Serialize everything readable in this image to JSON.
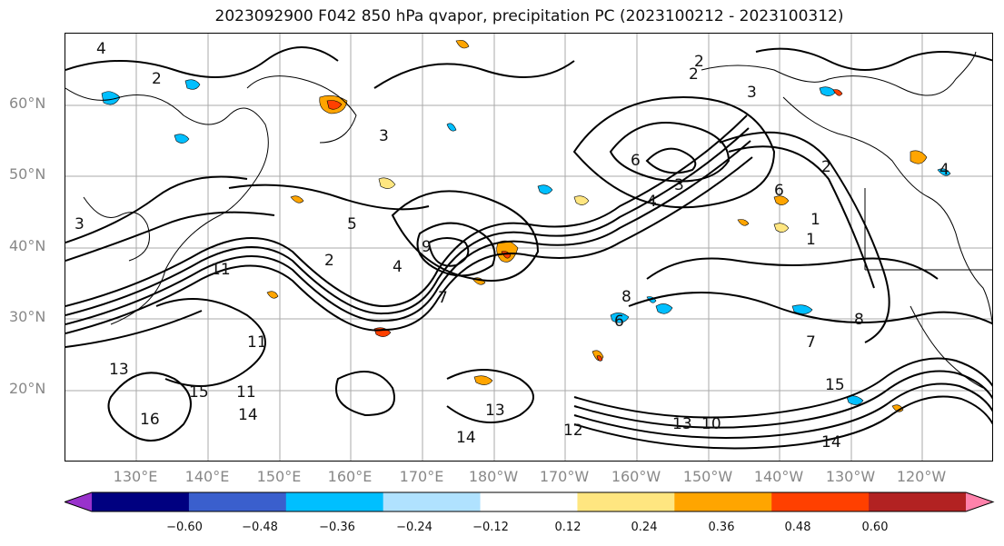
{
  "title": "2023092900 F042 850 hPa qvapor, precipitation PC (2023100212 - 2023100312)",
  "lat_labels": [
    "60°N",
    "50°N",
    "40°N",
    "30°N",
    "20°N"
  ],
  "lon_labels": [
    "130°E",
    "140°E",
    "150°E",
    "160°E",
    "170°E",
    "180°W",
    "170°W",
    "160°W",
    "150°W",
    "140°W",
    "130°W",
    "120°W"
  ],
  "contour_labels": [
    "4",
    "2",
    "2",
    "2",
    "3",
    "3",
    "6",
    "4",
    "3",
    "6",
    "2",
    "4",
    "1",
    "1",
    "3",
    "5",
    "9",
    "2",
    "4",
    "7",
    "11",
    "8",
    "8",
    "6",
    "7",
    "11",
    "13",
    "15",
    "16",
    "11",
    "14",
    "13",
    "14",
    "12",
    "15",
    "13",
    "14",
    "10"
  ],
  "colorbar": {
    "ticks": [
      "−0.60",
      "−0.48",
      "−0.36",
      "−0.24",
      "−0.12",
      "0.12",
      "0.24",
      "0.36",
      "0.48",
      "0.60"
    ],
    "bins": [
      {
        "color": "#9932cc"
      },
      {
        "color": "#000080"
      },
      {
        "color": "#3a5fcd"
      },
      {
        "color": "#00bfff"
      },
      {
        "color": "#b0e2ff"
      },
      {
        "color": "#ffffff"
      },
      {
        "color": "#ffe680"
      },
      {
        "color": "#ffa500"
      },
      {
        "color": "#ff4000"
      },
      {
        "color": "#b22222"
      },
      {
        "color": "#ff82ab"
      }
    ]
  },
  "map": {
    "lat_range": [
      "10°N",
      "70°N"
    ],
    "lon_range": [
      "120°E",
      "110°W"
    ],
    "gridlines": true,
    "field_contour_color": "#000000",
    "coastline_color": "#000000"
  }
}
